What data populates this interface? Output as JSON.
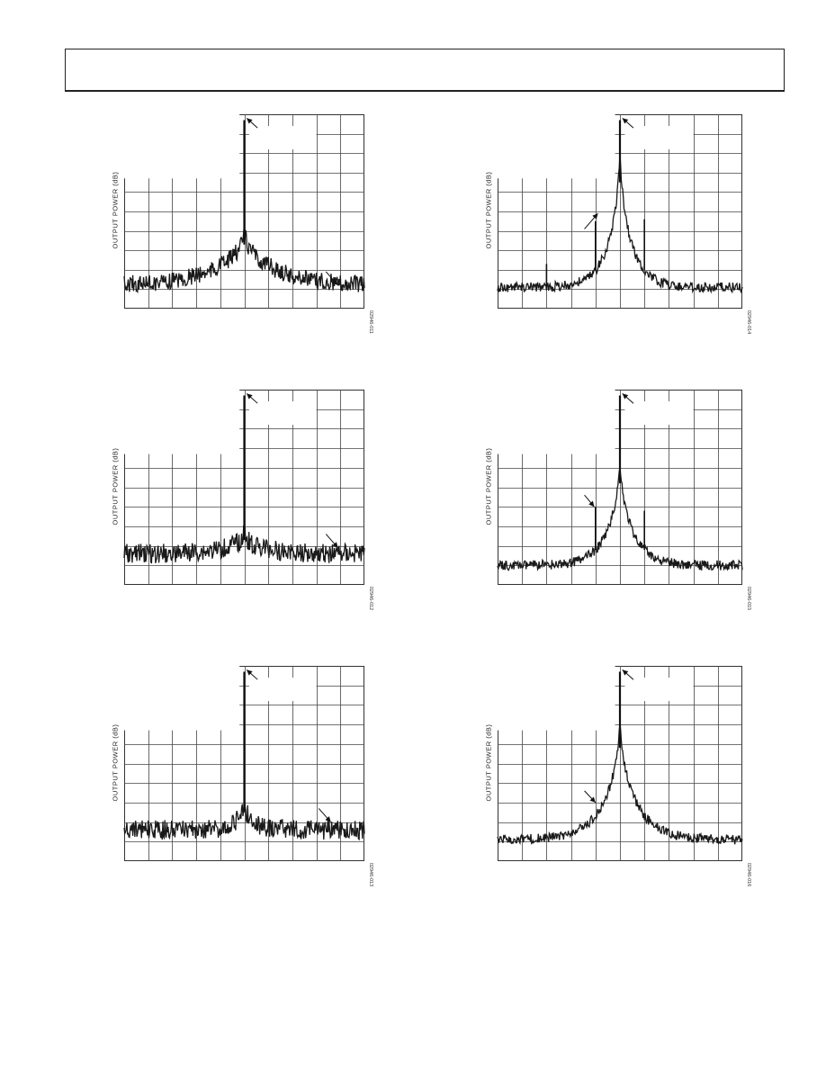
{
  "header": {
    "text": ""
  },
  "chart_data": [
    {
      "type": "line",
      "ylabel": "OUTPUT POWER (dB)",
      "figure_id": "02946-011",
      "carrier": {
        "x": 0.5,
        "y": 0.03
      },
      "noise": {
        "floor": 0.88,
        "bump": 0.21,
        "width": 0.14,
        "sharp": 0.06,
        "sharp_w": 0.012,
        "jitter": 0.045
      },
      "spurs": [],
      "arrows": [
        {
          "from": [
            0.555,
            0.07
          ],
          "to": [
            0.51,
            0.02
          ]
        },
        {
          "from": [
            0.84,
            0.81
          ],
          "to": [
            0.89,
            0.88
          ]
        }
      ]
    },
    {
      "type": "line",
      "ylabel": "OUTPUT POWER (dB)",
      "figure_id": "02946-014",
      "carrier": {
        "x": 0.5,
        "y": 0.03
      },
      "noise": {
        "floor": 0.89,
        "bump": 0.54,
        "width": 0.055,
        "sharp": 0.14,
        "sharp_w": 0.01,
        "jitter": 0.025
      },
      "spurs": [
        {
          "x": 0.2,
          "y": 0.77
        },
        {
          "x": 0.4,
          "y": 0.55
        },
        {
          "x": 0.6,
          "y": 0.54
        }
      ],
      "arrows": [
        {
          "from": [
            0.555,
            0.07
          ],
          "to": [
            0.51,
            0.02
          ]
        },
        {
          "from": [
            0.355,
            0.59
          ],
          "to": [
            0.41,
            0.51
          ]
        }
      ]
    },
    {
      "type": "line",
      "ylabel": "OUTPUT POWER (dB)",
      "figure_id": "02946-012",
      "carrier": {
        "x": 0.5,
        "y": 0.03
      },
      "noise": {
        "floor": 0.84,
        "bump": 0.07,
        "width": 0.09,
        "sharp": 0.04,
        "sharp_w": 0.01,
        "jitter": 0.05
      },
      "spurs": [],
      "arrows": [
        {
          "from": [
            0.555,
            0.07
          ],
          "to": [
            0.51,
            0.02
          ]
        },
        {
          "from": [
            0.84,
            0.74
          ],
          "to": [
            0.89,
            0.81
          ]
        }
      ]
    },
    {
      "type": "line",
      "ylabel": "OUTPUT POWER (dB)",
      "figure_id": "02946-015",
      "carrier": {
        "x": 0.5,
        "y": 0.03
      },
      "noise": {
        "floor": 0.9,
        "bump": 0.42,
        "width": 0.06,
        "sharp": 0.1,
        "sharp_w": 0.01,
        "jitter": 0.025
      },
      "spurs": [
        {
          "x": 0.4,
          "y": 0.6
        },
        {
          "x": 0.6,
          "y": 0.62
        }
      ],
      "arrows": [
        {
          "from": [
            0.355,
            0.54
          ],
          "to": [
            0.395,
            0.6
          ]
        },
        {
          "from": [
            0.555,
            0.07
          ],
          "to": [
            0.51,
            0.02
          ]
        }
      ]
    },
    {
      "type": "line",
      "ylabel": "OUTPUT POWER (dB)",
      "figure_id": "02946-013",
      "carrier": {
        "x": 0.5,
        "y": 0.03
      },
      "noise": {
        "floor": 0.84,
        "bump": 0.09,
        "width": 0.05,
        "sharp": 0.06,
        "sharp_w": 0.008,
        "jitter": 0.05
      },
      "spurs": [],
      "arrows": [
        {
          "from": [
            0.555,
            0.07
          ],
          "to": [
            0.51,
            0.02
          ]
        },
        {
          "from": [
            0.81,
            0.73
          ],
          "to": [
            0.86,
            0.8
          ]
        }
      ]
    },
    {
      "type": "line",
      "ylabel": "OUTPUT POWER (dB)",
      "figure_id": "02946-016",
      "carrier": {
        "x": 0.5,
        "y": 0.03
      },
      "noise": {
        "floor": 0.89,
        "bump": 0.47,
        "width": 0.075,
        "sharp": 0.12,
        "sharp_w": 0.01,
        "jitter": 0.025
      },
      "spurs": [],
      "arrows": [
        {
          "from": [
            0.555,
            0.07
          ],
          "to": [
            0.51,
            0.02
          ]
        },
        {
          "from": [
            0.355,
            0.64
          ],
          "to": [
            0.4,
            0.7
          ]
        }
      ]
    }
  ]
}
